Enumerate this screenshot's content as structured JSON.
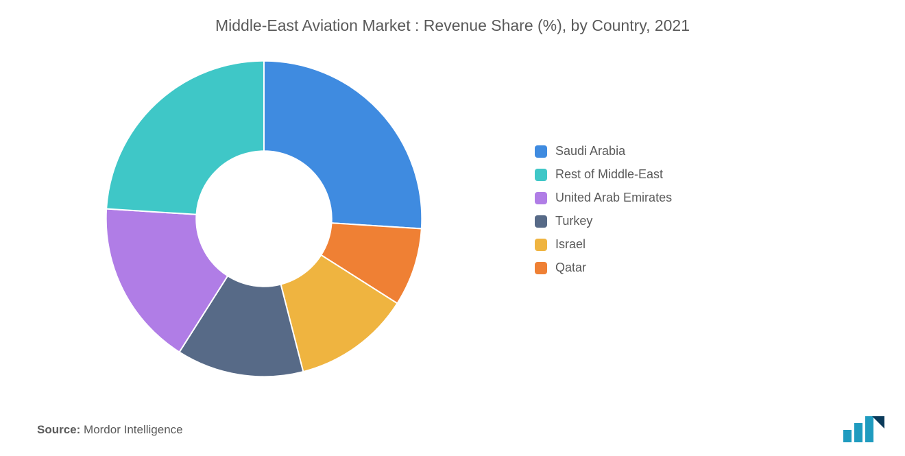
{
  "title": "Middle-East Aviation Market : Revenue Share (%), by Country, 2021",
  "chart": {
    "type": "donut",
    "size": 470,
    "inner_radius_pct": 42,
    "outer_radius_pct": 98,
    "background_color": "#ffffff",
    "start_angle_deg": 0,
    "stroke_color": "#ffffff",
    "stroke_width": 2,
    "series": [
      {
        "label": "Saudi Arabia",
        "value": 26,
        "color": "#3f8be0"
      },
      {
        "label": "Qatar",
        "value": 8,
        "color": "#ef8034"
      },
      {
        "label": "Israel",
        "value": 12,
        "color": "#efb440"
      },
      {
        "label": "Turkey",
        "value": 13,
        "color": "#576a87"
      },
      {
        "label": "United Arab Emirates",
        "value": 17,
        "color": "#b07de6"
      },
      {
        "label": "Rest of Middle-East",
        "value": 24,
        "color": "#3fc7c7"
      }
    ],
    "legend_order": [
      "Saudi Arabia",
      "Rest of Middle-East",
      "United Arab Emirates",
      "Turkey",
      "Israel",
      "Qatar"
    ],
    "legend": {
      "font_size": 18,
      "text_color": "#5a5a5a",
      "swatch_size": 18,
      "swatch_radius": 4,
      "row_gap": 13
    },
    "title_style": {
      "font_size": 23,
      "color": "#5a5a5a",
      "font_weight": 500
    }
  },
  "source": {
    "key": "Source:",
    "value": "Mordor Intelligence"
  },
  "logo": {
    "bar_color": "#1f9bbf",
    "accent_color": "#0a3a5a"
  }
}
